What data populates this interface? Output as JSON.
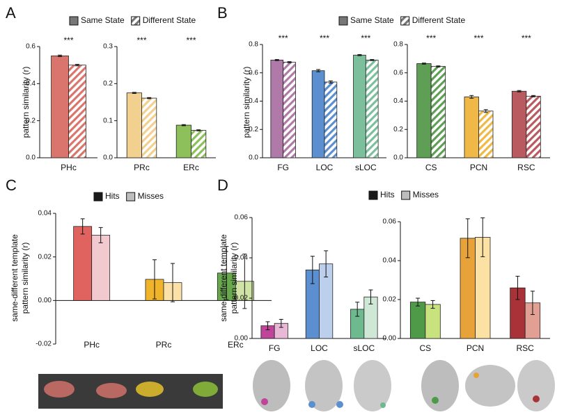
{
  "chart_data": [
    {
      "type": "bar",
      "panel": "A",
      "ylabel": [
        "pattern similarity (r)"
      ],
      "series": [
        {
          "name": "Same State",
          "color": "#777777",
          "hatch": false
        },
        {
          "name": "Different State",
          "color": "#777777",
          "hatch": true
        }
      ],
      "subplots": [
        {
          "categories": [
            "PHc"
          ],
          "ylim": [
            0,
            0.6
          ],
          "yticks": [
            {
              "value": 0,
              "label": "0.0"
            },
            0.2,
            0.4,
            0.6
          ],
          "annotations": [
            "***"
          ],
          "series": [
            {
              "colors": [
                "#d9756d"
              ],
              "values": [
                0.55
              ],
              "errors": [
                0.004
              ]
            },
            {
              "colors": [
                "#d9756d"
              ],
              "values": [
                0.5
              ],
              "errors": [
                0.004
              ]
            }
          ]
        },
        {
          "categories": [
            "PRc",
            "ERc"
          ],
          "ylim": [
            0,
            0.3
          ],
          "yticks": [
            {
              "value": 0,
              "label": "0.0"
            },
            0.1,
            0.2,
            0.3
          ],
          "annotations": [
            "***",
            "***"
          ],
          "series": [
            {
              "colors": [
                "#f2d08f",
                "#8dbf5a"
              ],
              "values": [
                0.175,
                0.088
              ],
              "errors": [
                0.0015,
                0.0015
              ]
            },
            {
              "colors": [
                "#f2d08f",
                "#8dbf5a"
              ],
              "values": [
                0.161,
                0.074
              ],
              "errors": [
                0.0015,
                0.0015
              ]
            }
          ]
        }
      ]
    },
    {
      "type": "bar",
      "panel": "B",
      "ylabel": [
        "pattern similarity (r)"
      ],
      "series": [
        {
          "name": "Same State",
          "color": "#777777",
          "hatch": false
        },
        {
          "name": "Different State",
          "color": "#777777",
          "hatch": true
        }
      ],
      "subplots": [
        {
          "categories": [
            "FG",
            "LOC",
            "sLOC"
          ],
          "ylim": [
            0,
            0.8
          ],
          "yticks": [
            {
              "value": 0,
              "label": "0.0"
            },
            0.2,
            0.4,
            0.6,
            0.8
          ],
          "annotations": [
            "***",
            "***",
            "***"
          ],
          "series": [
            {
              "colors": [
                "#b07aa8",
                "#5b8fd0",
                "#7cbf9c"
              ],
              "values": [
                0.69,
                0.615,
                0.725
              ],
              "errors": [
                0.004,
                0.008,
                0.004
              ]
            },
            {
              "colors": [
                "#b07aa8",
                "#5b8fd0",
                "#7cbf9c"
              ],
              "values": [
                0.675,
                0.535,
                0.69
              ],
              "errors": [
                0.004,
                0.008,
                0.004
              ]
            }
          ]
        },
        {
          "categories": [
            "CS",
            "PCN",
            "RSC"
          ],
          "ylim": [
            0,
            0.8
          ],
          "yticks": [
            {
              "value": 0,
              "label": "0.0"
            },
            0.2,
            0.4,
            0.6,
            0.8
          ],
          "annotations": [
            "***",
            "***",
            "***"
          ],
          "series": [
            {
              "colors": [
                "#5f9e55",
                "#f0b847",
                "#b85a5f"
              ],
              "values": [
                0.665,
                0.43,
                0.47
              ],
              "errors": [
                0.004,
                0.01,
                0.005
              ]
            },
            {
              "colors": [
                "#5f9e55",
                "#f0b847",
                "#b85a5f"
              ],
              "values": [
                0.645,
                0.33,
                0.435
              ],
              "errors": [
                0.004,
                0.01,
                0.005
              ]
            }
          ]
        }
      ]
    },
    {
      "type": "bar",
      "panel": "C",
      "ylabel": [
        "same-different template",
        "pattern similarity (r)"
      ],
      "series": [
        {
          "name": "Hits",
          "color": "#1a1a1a",
          "hatch": false
        },
        {
          "name": "Misses",
          "color": "#bdbdbd",
          "hatch": false
        }
      ],
      "subplots": [
        {
          "categories": [
            "PHc",
            "PRc",
            "ERc"
          ],
          "ylim": [
            -0.02,
            0.04
          ],
          "yticks": [
            -0.02,
            {
              "value": 0,
              "label": "0.00"
            },
            0.02,
            0.04
          ],
          "series": [
            {
              "colors": [
                "#e0635f",
                "#f0b42a",
                "#6aa84f"
              ],
              "values": [
                0.034,
                0.0097,
                0.0126
              ],
              "errors": [
                0.0035,
                0.009,
                0.0122
              ]
            },
            {
              "colors": [
                "#f3c9d0",
                "#fbe1a7",
                "#cfe3a6"
              ],
              "values": [
                0.03,
                0.0082,
                0.0088
              ],
              "errors": [
                0.0035,
                0.0088,
                0.0125
              ]
            }
          ]
        }
      ]
    },
    {
      "type": "bar",
      "panel": "D",
      "ylabel": [
        "same-different template",
        "pattern similarity (r)"
      ],
      "series": [
        {
          "name": "Hits",
          "color": "#1a1a1a",
          "hatch": false
        },
        {
          "name": "Misses",
          "color": "#bdbdbd",
          "hatch": false
        }
      ],
      "subplots": [
        {
          "categories": [
            "FG",
            "LOC",
            "sLOC"
          ],
          "ylim": [
            0,
            0.06
          ],
          "yticks": [
            {
              "value": 0,
              "label": "0.00"
            },
            0.02,
            0.04,
            0.06
          ],
          "series": [
            {
              "colors": [
                "#c0449a",
                "#5b8fd0",
                "#6fb98f"
              ],
              "values": [
                0.0063,
                0.034,
                0.0145
              ],
              "errors": [
                0.002,
                0.0068,
                0.0035
              ]
            },
            {
              "colors": [
                "#e8b8d6",
                "#bcd0ee",
                "#cfe8d6"
              ],
              "values": [
                0.0075,
                0.037,
                0.0206
              ],
              "errors": [
                0.002,
                0.0065,
                0.0035
              ]
            }
          ]
        },
        {
          "categories": [
            "CS",
            "PCN",
            "RSC"
          ],
          "ylim": [
            0,
            0.06
          ],
          "yticks": [
            {
              "value": 0,
              "label": "0.00"
            },
            0.02,
            0.04,
            0.06
          ],
          "series": [
            {
              "colors": [
                "#4e9a49",
                "#e8a23a",
                "#a83238"
              ],
              "values": [
                0.0187,
                0.0515,
                0.026
              ],
              "errors": [
                0.002,
                0.01,
                0.006
              ]
            },
            {
              "colors": [
                "#c8e27d",
                "#fbe2a4",
                "#e1a093"
              ],
              "values": [
                0.0175,
                0.052,
                0.0183
              ],
              "errors": [
                0.002,
                0.01,
                0.006
              ]
            }
          ]
        }
      ]
    }
  ]
}
